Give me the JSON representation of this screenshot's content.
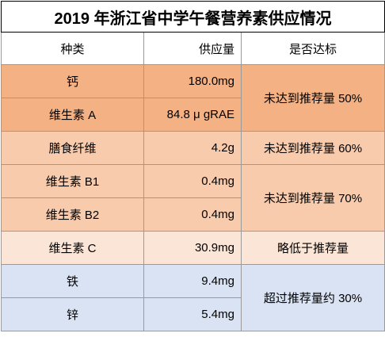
{
  "title": "2019 年浙江省中学午餐营养素供应情况",
  "headers": {
    "category": "种类",
    "amount": "供应量",
    "meets_standard": "是否达标"
  },
  "rows": [
    {
      "name": "钙",
      "amount": "180.0mg"
    },
    {
      "name": "维生素 A",
      "amount": "84.8 μ gRAE"
    },
    {
      "name": "膳食纤维",
      "amount": "4.2g"
    },
    {
      "name": "维生素 B1",
      "amount": "0.4mg"
    },
    {
      "name": "维生素 B2",
      "amount": "0.4mg"
    },
    {
      "name": "维生素 C",
      "amount": "30.9mg"
    },
    {
      "name": "铁",
      "amount": "9.4mg"
    },
    {
      "name": "锌",
      "amount": "5.4mg"
    }
  ],
  "statuses": {
    "calcium_vitA": "未达到推荐量 50%",
    "fiber": "未达到推荐量 60%",
    "b1_b2": "未达到推荐量 70%",
    "vitC": "略低于推荐量",
    "iron_zinc": "超过推荐量约 30%"
  },
  "colors": {
    "orange": "#f4b183",
    "light_orange": "#f8cbad",
    "pale_orange": "#fbe5d6",
    "light_blue": "#dae3f3"
  }
}
